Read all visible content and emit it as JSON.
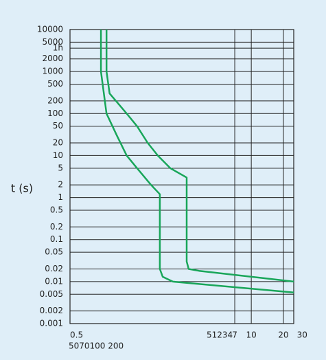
{
  "chart_data": {
    "type": "line",
    "y_label": "t (s)",
    "yscale": "log",
    "xscale": "log",
    "ylim": [
      0.001,
      10000
    ],
    "yticks": [
      10000,
      5000,
      {
        "value": 3600,
        "label": "1h"
      },
      2000,
      1000,
      500,
      200,
      100,
      50,
      20,
      10,
      5,
      2,
      1,
      0.5,
      0.2,
      0.1,
      0.05,
      0.02,
      0.01,
      0.005,
      0.002,
      0.001
    ],
    "xlim": [
      0.2,
      25
    ],
    "xticks": [
      7,
      10,
      20,
      30
    ],
    "x_label_fragments": [
      "0.5",
      "5070100 200",
      "51234"
    ],
    "grid": true,
    "series": [
      {
        "color": "#19a65a",
        "x": [
          0.44,
          0.44,
          0.47,
          0.68,
          0.85,
          1.07,
          1.33,
          1.74,
          2.48,
          2.48,
          2.59,
          3.24,
          25
        ],
        "y": [
          10000,
          1000,
          300,
          100,
          50,
          20,
          10,
          5,
          3,
          0.03,
          0.02,
          0.018,
          0.01
        ]
      },
      {
        "color": "#19a65a",
        "x": [
          0.39,
          0.39,
          0.44,
          0.55,
          0.68,
          0.85,
          1.15,
          1.39,
          1.39,
          1.48,
          1.84,
          25
        ],
        "y": [
          10000,
          1000,
          100,
          30,
          10,
          5,
          2,
          1.2,
          0.02,
          0.013,
          0.01,
          0.0055
        ]
      }
    ]
  }
}
